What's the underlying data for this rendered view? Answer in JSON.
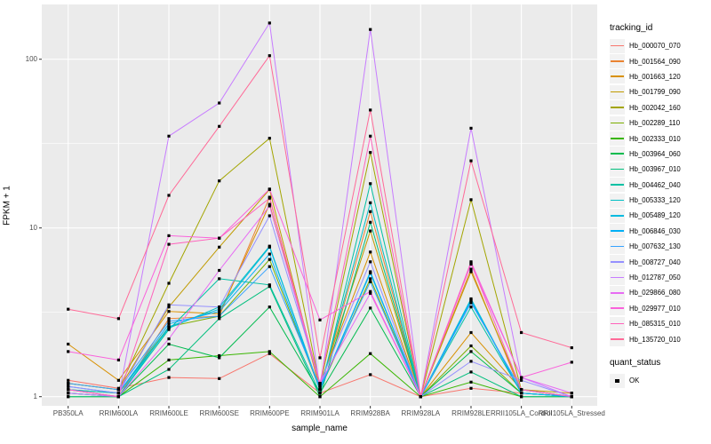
{
  "chart_data": {
    "type": "line",
    "title": "",
    "xlabel": "sample_name",
    "ylabel": "FPKM + 1",
    "x_categories": [
      "PB350LA",
      "RRIM600LA",
      "RRIM600LE",
      "RRIM600SE",
      "RRIM600PE",
      "RRIM901LA",
      "RRIM928BA",
      "RRIM928LA",
      "RRIM928LE",
      "RRII105LA_Control",
      "RRII105LA_Stressed"
    ],
    "y_axis": {
      "scale": "log10",
      "ticks": [
        1,
        10,
        100
      ],
      "tick_labels": [
        "1",
        "10",
        "100"
      ],
      "minor_gridlines": [
        3.1623,
        31.623
      ],
      "range": [
        1,
        210
      ],
      "grid": true
    },
    "point_marker": {
      "shape": "square",
      "color": "#000000",
      "size": 3.2
    },
    "series": [
      {
        "name": "Hb_000070_070",
        "color": "#F8766D",
        "values": [
          1.25,
          1.12,
          1.3,
          1.28,
          1.8,
          1.05,
          1.35,
          1.0,
          1.12,
          1.05,
          1.0
        ]
      },
      {
        "name": "Hb_001564_090",
        "color": "#EA8331",
        "values": [
          1.1,
          1.0,
          2.9,
          3.0,
          15.2,
          1.1,
          12.5,
          1.0,
          5.7,
          1.05,
          1.0
        ]
      },
      {
        "name": "Hb_001663_120",
        "color": "#D89000",
        "values": [
          2.05,
          1.25,
          3.2,
          3.1,
          13.8,
          1.2,
          7.2,
          1.0,
          2.4,
          1.1,
          1.0
        ]
      },
      {
        "name": "Hb_001799_090",
        "color": "#C09B00",
        "values": [
          1.2,
          1.1,
          3.4,
          7.7,
          16.9,
          1.15,
          9.6,
          1.0,
          5.5,
          1.1,
          1.05
        ]
      },
      {
        "name": "Hb_002042_160",
        "color": "#A3A500",
        "values": [
          1.2,
          1.1,
          4.7,
          19.0,
          34.0,
          1.15,
          28.0,
          1.0,
          14.7,
          1.1,
          1.0
        ]
      },
      {
        "name": "Hb_002289_110",
        "color": "#7CAE00",
        "values": [
          1.1,
          1.05,
          2.6,
          3.0,
          6.5,
          1.1,
          5.0,
          1.0,
          2.0,
          1.05,
          1.0
        ]
      },
      {
        "name": "Hb_002333_010",
        "color": "#39B600",
        "values": [
          1.0,
          1.0,
          1.65,
          1.75,
          1.85,
          1.0,
          1.8,
          1.0,
          1.22,
          1.0,
          1.0
        ]
      },
      {
        "name": "Hb_003964_060",
        "color": "#00BB4E",
        "values": [
          1.05,
          1.0,
          2.05,
          1.7,
          3.4,
          1.05,
          3.35,
          1.0,
          1.85,
          1.05,
          1.0
        ]
      },
      {
        "name": "Hb_003967_010",
        "color": "#00BF7D",
        "values": [
          1.0,
          1.0,
          1.45,
          2.9,
          4.5,
          1.0,
          10.8,
          1.0,
          1.4,
          1.0,
          1.0
        ]
      },
      {
        "name": "Hb_004462_040",
        "color": "#00C1A3",
        "values": [
          1.05,
          1.0,
          2.5,
          5.0,
          4.6,
          1.05,
          18.3,
          1.0,
          3.4,
          1.05,
          1.0
        ]
      },
      {
        "name": "Hb_005333_120",
        "color": "#00BFC4",
        "values": [
          1.1,
          1.05,
          2.55,
          3.4,
          7.8,
          1.1,
          14.1,
          1.0,
          3.8,
          1.05,
          1.0
        ]
      },
      {
        "name": "Hb_005489_120",
        "color": "#00BAE0",
        "values": [
          1.1,
          1.0,
          2.6,
          3.3,
          7.7,
          1.1,
          5.5,
          1.0,
          3.75,
          1.05,
          1.0
        ]
      },
      {
        "name": "Hb_006846_030",
        "color": "#00B0F6",
        "values": [
          1.15,
          1.05,
          2.7,
          3.2,
          7.0,
          1.1,
          5.4,
          1.0,
          3.7,
          1.05,
          1.0
        ]
      },
      {
        "name": "Hb_007632_130",
        "color": "#35A2FF",
        "values": [
          1.2,
          1.1,
          2.8,
          3.0,
          5.9,
          1.15,
          4.8,
          1.0,
          3.6,
          1.1,
          1.0
        ]
      },
      {
        "name": "Hb_008727_040",
        "color": "#9590FF",
        "values": [
          1.15,
          1.05,
          3.5,
          3.4,
          11.8,
          1.2,
          6.3,
          1.0,
          1.62,
          1.25,
          1.0
        ]
      },
      {
        "name": "Hb_012787_050",
        "color": "#C77CFF",
        "values": [
          1.05,
          1.0,
          35.0,
          55.0,
          164.0,
          1.1,
          150.0,
          1.0,
          39.0,
          1.3,
          1.0
        ]
      },
      {
        "name": "Hb_029866_080",
        "color": "#E76BF3",
        "values": [
          1.1,
          1.0,
          2.2,
          5.6,
          13.5,
          1.2,
          4.1,
          1.0,
          6.1,
          1.3,
          1.05
        ]
      },
      {
        "name": "Hb_029977_010",
        "color": "#FA62DB",
        "values": [
          1.85,
          1.65,
          9.0,
          8.7,
          17.0,
          2.85,
          4.2,
          1.0,
          6.3,
          1.3,
          1.6
        ]
      },
      {
        "name": "Hb_085315_010",
        "color": "#FF62BC",
        "values": [
          1.1,
          1.0,
          8.0,
          8.7,
          15.0,
          1.2,
          35.0,
          1.0,
          6.2,
          1.1,
          1.0
        ]
      },
      {
        "name": "Hb_135720_010",
        "color": "#FF6A98",
        "values": [
          3.3,
          2.9,
          15.6,
          40.0,
          105.0,
          1.7,
          50.0,
          1.0,
          25.0,
          2.4,
          1.95
        ]
      }
    ],
    "legend": {
      "title": "tracking_id",
      "position": "right"
    },
    "legend2": {
      "title": "quant_status",
      "entries": [
        {
          "label": "OK",
          "marker": "black-square"
        }
      ]
    }
  },
  "colors": {
    "page_bg": "#FFFFFF",
    "panel_bg": "#EBEBEB",
    "grid": "#FFFFFF",
    "axis_text": "#4D4D4D",
    "tick_mark": "#333333",
    "legend_key_bg": "#F2F2F2",
    "point": "#000000"
  }
}
